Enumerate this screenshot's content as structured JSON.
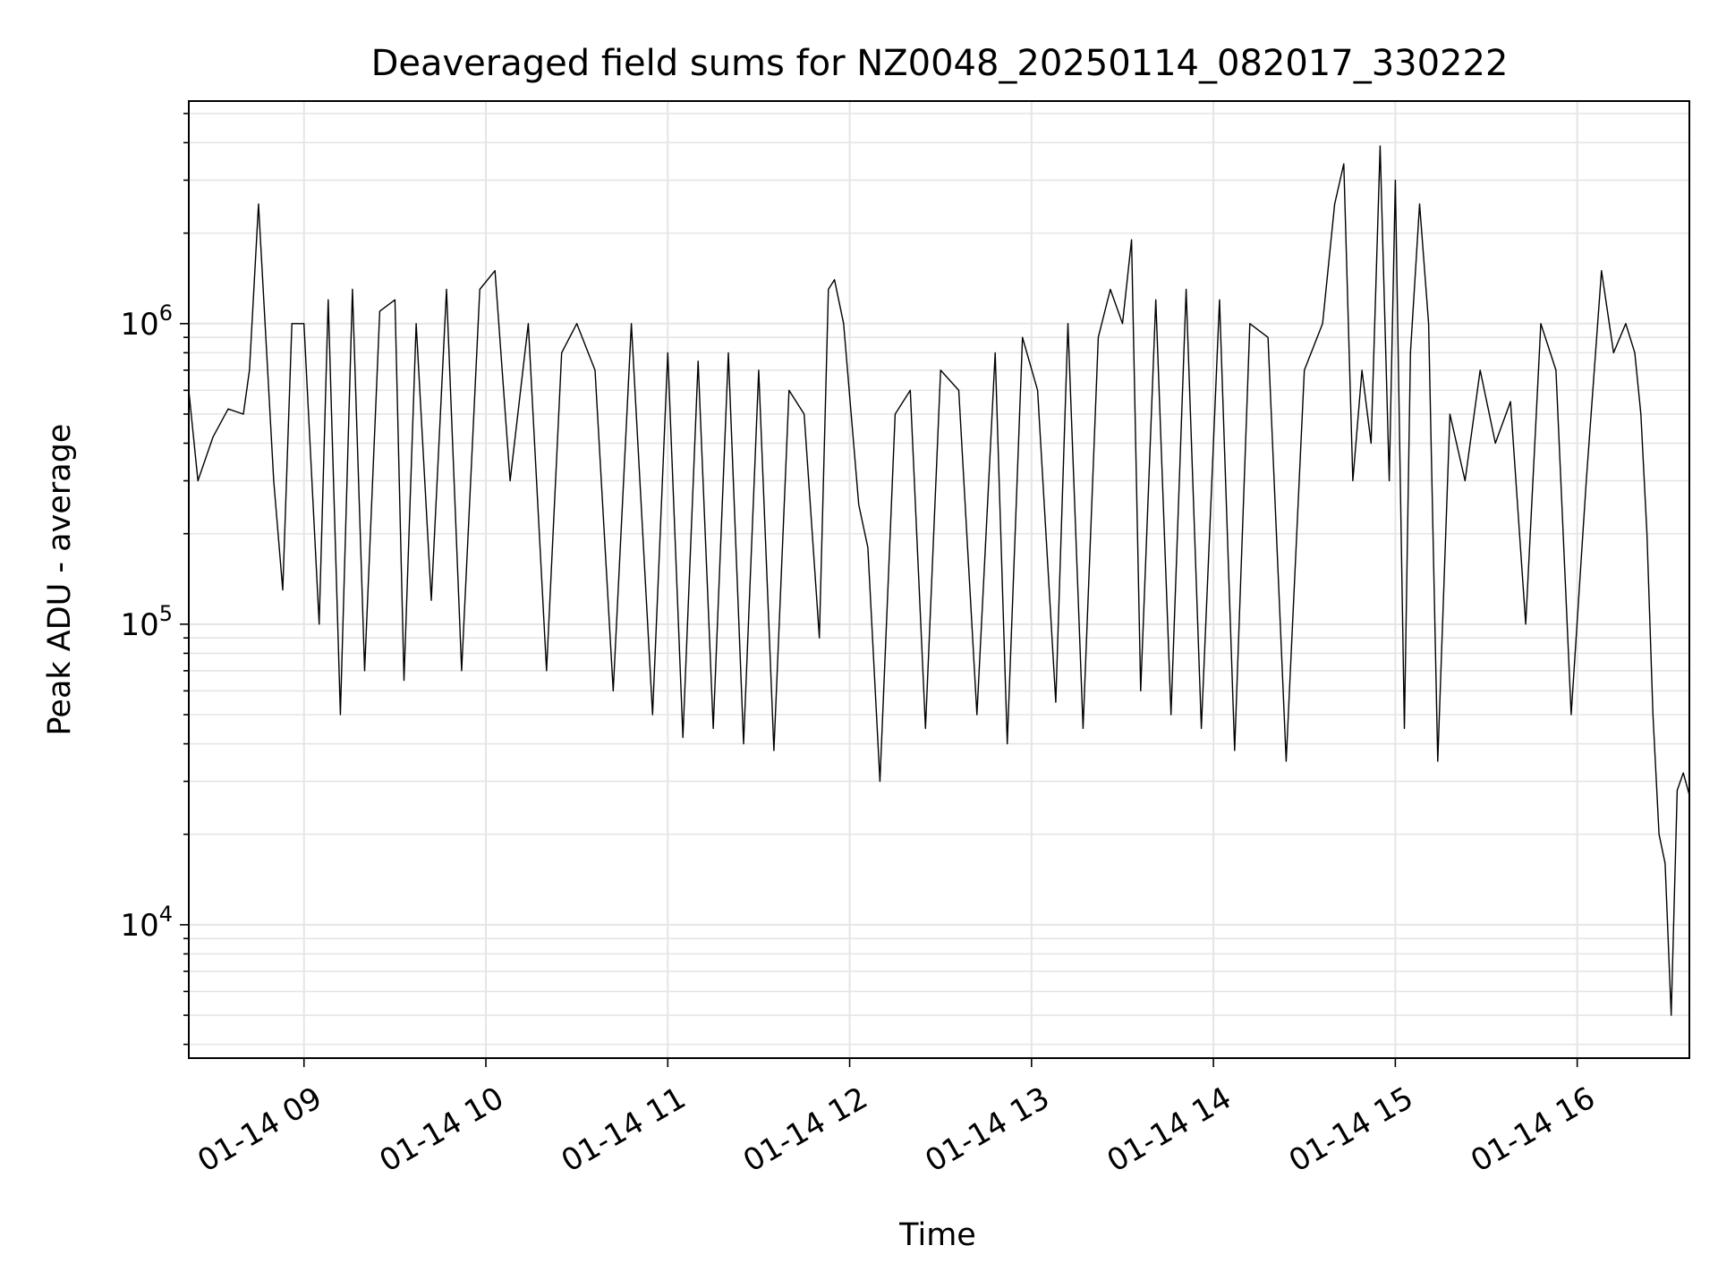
{
  "chart_data": {
    "type": "line",
    "title": "Deaveraged field sums for NZ0048_20250114_082017_330222",
    "xlabel": "Time",
    "ylabel": "Peak ADU - average",
    "yscale": "log",
    "ylim": [
      3600,
      5500000
    ],
    "xlim": [
      "2025-01-14T08:22:00",
      "2025-01-14T16:37:00"
    ],
    "grid": true,
    "line_color": "#000000",
    "grid_color": "#e5e5e5",
    "x_ticks": [
      {
        "t": "2025-01-14T09:00:00",
        "label": "01-14 09"
      },
      {
        "t": "2025-01-14T10:00:00",
        "label": "01-14 10"
      },
      {
        "t": "2025-01-14T11:00:00",
        "label": "01-14 11"
      },
      {
        "t": "2025-01-14T12:00:00",
        "label": "01-14 12"
      },
      {
        "t": "2025-01-14T13:00:00",
        "label": "01-14 13"
      },
      {
        "t": "2025-01-14T14:00:00",
        "label": "01-14 14"
      },
      {
        "t": "2025-01-14T15:00:00",
        "label": "01-14 15"
      },
      {
        "t": "2025-01-14T16:00:00",
        "label": "01-14 16"
      }
    ],
    "y_ticks": [
      {
        "value": 10000,
        "base": "10",
        "exp": "4"
      },
      {
        "value": 100000,
        "base": "10",
        "exp": "5"
      },
      {
        "value": 1000000,
        "base": "10",
        "exp": "6"
      }
    ],
    "series": [
      {
        "x": [
          "2025-01-14T08:22:00",
          "2025-01-14T08:25:00",
          "2025-01-14T08:30:00",
          "2025-01-14T08:35:00",
          "2025-01-14T08:40:00",
          "2025-01-14T08:42:00",
          "2025-01-14T08:45:00",
          "2025-01-14T08:50:00",
          "2025-01-14T08:53:00",
          "2025-01-14T08:56:00",
          "2025-01-14T09:00:00",
          "2025-01-14T09:05:00",
          "2025-01-14T09:08:00",
          "2025-01-14T09:12:00",
          "2025-01-14T09:16:00",
          "2025-01-14T09:20:00",
          "2025-01-14T09:25:00",
          "2025-01-14T09:30:00",
          "2025-01-14T09:33:00",
          "2025-01-14T09:37:00",
          "2025-01-14T09:42:00",
          "2025-01-14T09:47:00",
          "2025-01-14T09:52:00",
          "2025-01-14T09:58:00",
          "2025-01-14T10:03:00",
          "2025-01-14T10:08:00",
          "2025-01-14T10:14:00",
          "2025-01-14T10:20:00",
          "2025-01-14T10:25:00",
          "2025-01-14T10:30:00",
          "2025-01-14T10:36:00",
          "2025-01-14T10:42:00",
          "2025-01-14T10:48:00",
          "2025-01-14T10:55:00",
          "2025-01-14T11:00:00",
          "2025-01-14T11:05:00",
          "2025-01-14T11:10:00",
          "2025-01-14T11:15:00",
          "2025-01-14T11:20:00",
          "2025-01-14T11:25:00",
          "2025-01-14T11:30:00",
          "2025-01-14T11:35:00",
          "2025-01-14T11:40:00",
          "2025-01-14T11:45:00",
          "2025-01-14T11:50:00",
          "2025-01-14T11:53:00",
          "2025-01-14T11:55:00",
          "2025-01-14T11:58:00",
          "2025-01-14T12:03:00",
          "2025-01-14T12:06:00",
          "2025-01-14T12:10:00",
          "2025-01-14T12:15:00",
          "2025-01-14T12:20:00",
          "2025-01-14T12:25:00",
          "2025-01-14T12:30:00",
          "2025-01-14T12:36:00",
          "2025-01-14T12:42:00",
          "2025-01-14T12:48:00",
          "2025-01-14T12:52:00",
          "2025-01-14T12:57:00",
          "2025-01-14T13:02:00",
          "2025-01-14T13:08:00",
          "2025-01-14T13:12:00",
          "2025-01-14T13:17:00",
          "2025-01-14T13:22:00",
          "2025-01-14T13:26:00",
          "2025-01-14T13:30:00",
          "2025-01-14T13:33:00",
          "2025-01-14T13:36:00",
          "2025-01-14T13:41:00",
          "2025-01-14T13:46:00",
          "2025-01-14T13:51:00",
          "2025-01-14T13:56:00",
          "2025-01-14T14:02:00",
          "2025-01-14T14:07:00",
          "2025-01-14T14:12:00",
          "2025-01-14T14:18:00",
          "2025-01-14T14:24:00",
          "2025-01-14T14:30:00",
          "2025-01-14T14:36:00",
          "2025-01-14T14:40:00",
          "2025-01-14T14:43:00",
          "2025-01-14T14:46:00",
          "2025-01-14T14:49:00",
          "2025-01-14T14:52:00",
          "2025-01-14T14:55:00",
          "2025-01-14T14:58:00",
          "2025-01-14T15:00:00",
          "2025-01-14T15:03:00",
          "2025-01-14T15:05:00",
          "2025-01-14T15:08:00",
          "2025-01-14T15:11:00",
          "2025-01-14T15:14:00",
          "2025-01-14T15:18:00",
          "2025-01-14T15:23:00",
          "2025-01-14T15:28:00",
          "2025-01-14T15:33:00",
          "2025-01-14T15:38:00",
          "2025-01-14T15:43:00",
          "2025-01-14T15:48:00",
          "2025-01-14T15:53:00",
          "2025-01-14T15:58:00",
          "2025-01-14T16:03:00",
          "2025-01-14T16:08:00",
          "2025-01-14T16:12:00",
          "2025-01-14T16:16:00",
          "2025-01-14T16:19:00",
          "2025-01-14T16:21:00",
          "2025-01-14T16:23:00",
          "2025-01-14T16:25:00",
          "2025-01-14T16:27:00",
          "2025-01-14T16:29:00",
          "2025-01-14T16:31:00",
          "2025-01-14T16:33:00",
          "2025-01-14T16:35:00",
          "2025-01-14T16:37:00"
        ],
        "values": [
          600000,
          300000,
          420000,
          520000,
          500000,
          700000,
          2500000,
          300000,
          130000,
          1000000,
          1000000,
          100000,
          1200000,
          50000,
          1300000,
          70000,
          1100000,
          1200000,
          65000,
          1000000,
          120000,
          1300000,
          70000,
          1300000,
          1500000,
          300000,
          1000000,
          70000,
          800000,
          1000000,
          700000,
          60000,
          1000000,
          50000,
          800000,
          42000,
          750000,
          45000,
          800000,
          40000,
          700000,
          38000,
          600000,
          500000,
          90000,
          1300000,
          1400000,
          1000000,
          250000,
          180000,
          30000,
          500000,
          600000,
          45000,
          700000,
          600000,
          50000,
          800000,
          40000,
          900000,
          600000,
          55000,
          1000000,
          45000,
          900000,
          1300000,
          1000000,
          1900000,
          60000,
          1200000,
          50000,
          1300000,
          45000,
          1200000,
          38000,
          1000000,
          900000,
          35000,
          700000,
          1000000,
          2500000,
          3400000,
          300000,
          700000,
          400000,
          3900000,
          300000,
          3000000,
          45000,
          800000,
          2500000,
          1000000,
          35000,
          500000,
          300000,
          700000,
          400000,
          550000,
          100000,
          1000000,
          700000,
          50000,
          300000,
          1500000,
          800000,
          1000000,
          800000,
          500000,
          200000,
          50000,
          20000,
          16000,
          5000,
          28000,
          32000,
          27000
        ]
      }
    ]
  }
}
